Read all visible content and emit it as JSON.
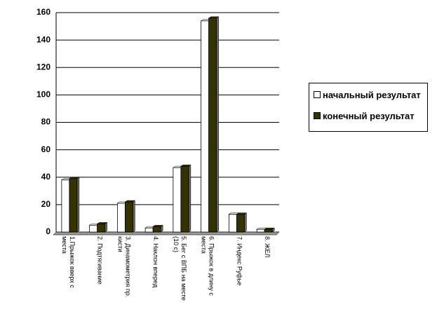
{
  "chart_data": {
    "type": "bar",
    "categories": [
      "1.Прыжок вверх с места",
      "2. Подтягивание",
      "3. Динамометрия пр. кисти",
      "4. Наклон вперед",
      "5. Бег с ВПБ на месте (10 с)",
      "6. Прыжок в длину с места",
      "7. Индекс Руфье",
      "8. ЖЕЛ"
    ],
    "series": [
      {
        "name": "начальный результат",
        "color": "#ffffff",
        "values": [
          38,
          5,
          21,
          3,
          47,
          154,
          13,
          2
        ]
      },
      {
        "name": "конечный результат",
        "color": "#333300",
        "values": [
          39,
          6,
          22,
          4,
          48,
          156,
          13,
          2
        ]
      }
    ],
    "ylim": [
      0,
      160
    ],
    "yticks": [
      0,
      20,
      40,
      60,
      80,
      100,
      120,
      140,
      160
    ],
    "grid": true
  }
}
